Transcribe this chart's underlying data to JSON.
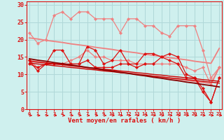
{
  "x": [
    0,
    1,
    2,
    3,
    4,
    5,
    6,
    7,
    8,
    9,
    10,
    11,
    12,
    13,
    14,
    15,
    16,
    17,
    18,
    19,
    20,
    21,
    22,
    23
  ],
  "background_color": "#cff0ee",
  "grid_color": "#b0d8d8",
  "xlabel": "Vent moyen/en rafales ( km/h )",
  "ylim": [
    0,
    31
  ],
  "xlim": [
    -0.3,
    23.3
  ],
  "yticks": [
    0,
    5,
    10,
    15,
    20,
    25,
    30
  ],
  "series": [
    {
      "name": "pink_upper_jagged",
      "color": "#f08080",
      "lw": 0.9,
      "marker": "D",
      "ms": 2.2,
      "values": [
        22,
        19,
        20,
        27,
        28,
        26,
        28,
        28,
        26,
        26,
        26,
        22,
        26,
        26,
        24,
        24,
        22,
        21,
        24,
        24,
        24,
        17,
        9,
        12
      ]
    },
    {
      "name": "pink_lower_jagged",
      "color": "#f08080",
      "lw": 0.9,
      "marker": "D",
      "ms": 2.2,
      "values": [
        14,
        12,
        13,
        13,
        13,
        14,
        15,
        17,
        15,
        15,
        14,
        14,
        14,
        13,
        13,
        13,
        13,
        13,
        13,
        12,
        11,
        12,
        7,
        12
      ]
    },
    {
      "name": "pink_upper_line",
      "color": "#f08080",
      "lw": 1.3,
      "marker": null,
      "ms": 0,
      "values": [
        20.5,
        20.2,
        19.8,
        19.5,
        19.2,
        18.8,
        18.5,
        18.2,
        17.8,
        17.5,
        17.2,
        16.8,
        16.5,
        16.2,
        15.8,
        15.5,
        15.2,
        14.8,
        14.5,
        14.2,
        13.8,
        13.5,
        13.2,
        17.5
      ]
    },
    {
      "name": "pink_lower_line",
      "color": "#f08080",
      "lw": 1.3,
      "marker": null,
      "ms": 0,
      "values": [
        14.0,
        13.7,
        13.4,
        13.1,
        12.8,
        12.5,
        12.2,
        11.9,
        11.6,
        11.3,
        11.0,
        10.7,
        10.4,
        10.1,
        9.8,
        9.5,
        9.2,
        8.9,
        8.6,
        8.3,
        8.0,
        7.7,
        7.4,
        12.0
      ]
    },
    {
      "name": "red_jagged1",
      "color": "#dd1111",
      "lw": 0.9,
      "marker": "D",
      "ms": 2.2,
      "values": [
        14,
        11,
        13,
        17,
        17,
        13,
        13,
        18,
        17,
        13,
        14,
        17,
        13,
        13,
        16,
        16,
        15,
        16,
        15,
        10,
        9,
        6,
        2,
        9
      ]
    },
    {
      "name": "red_jagged2",
      "color": "#dd1111",
      "lw": 0.9,
      "marker": "D",
      "ms": 2.2,
      "values": [
        13,
        12,
        13,
        13,
        13,
        13,
        13,
        14,
        12,
        12,
        12,
        13,
        13,
        12,
        13,
        13,
        15,
        14,
        13,
        9,
        9,
        5,
        2,
        9
      ]
    },
    {
      "name": "red_line1",
      "color": "#cc0000",
      "lw": 1.0,
      "marker": null,
      "ms": 0,
      "values": [
        13.8,
        13.5,
        13.3,
        13.0,
        12.8,
        12.5,
        12.3,
        12.0,
        11.8,
        11.5,
        11.3,
        11.0,
        10.8,
        10.5,
        10.3,
        10.0,
        9.8,
        9.5,
        9.3,
        9.0,
        8.8,
        8.5,
        8.3,
        8.0
      ]
    },
    {
      "name": "red_line2",
      "color": "#cc0000",
      "lw": 1.0,
      "marker": null,
      "ms": 0,
      "values": [
        13.3,
        13.0,
        12.8,
        12.5,
        12.3,
        12.0,
        11.8,
        11.5,
        11.3,
        11.0,
        10.8,
        10.5,
        10.3,
        10.0,
        9.8,
        9.5,
        9.3,
        9.0,
        8.8,
        8.5,
        8.3,
        8.0,
        7.8,
        7.5
      ]
    },
    {
      "name": "dark_red_line",
      "color": "#880000",
      "lw": 1.3,
      "marker": null,
      "ms": 0,
      "values": [
        14.5,
        14.1,
        13.8,
        13.4,
        13.1,
        12.7,
        12.4,
        12.0,
        11.7,
        11.3,
        11.0,
        10.6,
        10.3,
        9.9,
        9.6,
        9.2,
        8.9,
        8.5,
        8.2,
        7.8,
        7.5,
        7.1,
        6.8,
        6.4
      ]
    }
  ],
  "arrow_color": "#dd1111",
  "xlabel_color": "#dd1111",
  "tick_color": "#dd1111",
  "spine_color": "#dd1111"
}
